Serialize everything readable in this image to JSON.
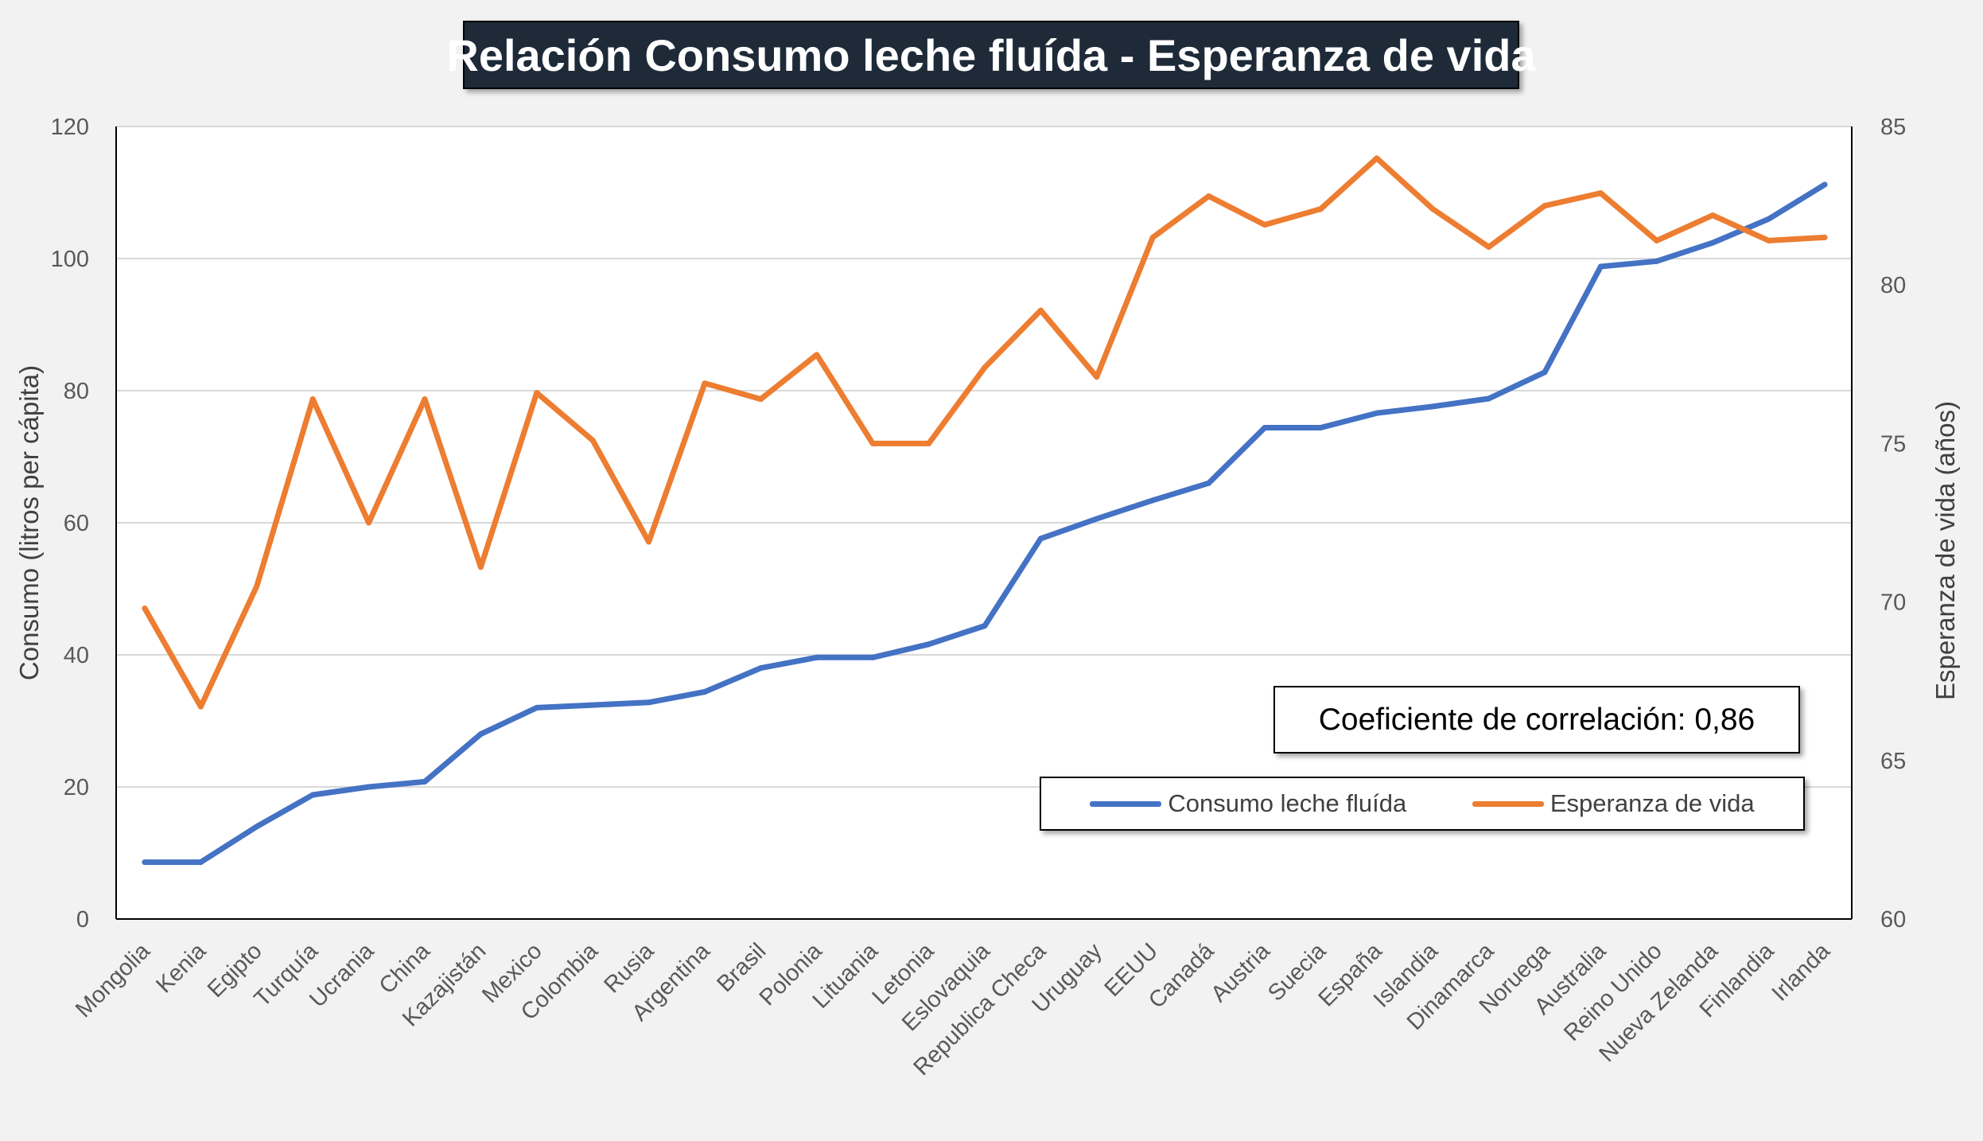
{
  "chart_data": {
    "type": "line",
    "title": "Relación Consumo leche fluída - Esperanza de vida",
    "annotation": "Coeficiente de correlación: 0,86",
    "categories": [
      "Mongolia",
      "Kenia",
      "Egipto",
      "Turquía",
      "Ucrania",
      "China",
      "Kazajistán",
      "Mexico",
      "Colombia",
      "Rusia",
      "Argentina",
      "Brasil",
      "Polonia",
      "Lituania",
      "Letonia",
      "Eslovaquia",
      "Republica Checa",
      "Uruguay",
      "EEUU",
      "Canadá",
      "Austria",
      "Suecia",
      "España",
      "Islandia",
      "Dinamarca",
      "Noruega",
      "Australia",
      "Reino Unido",
      "Nueva Zelanda",
      "Finlandia",
      "Irlanda"
    ],
    "y_left": {
      "label": "Consumo (litros per cápita)",
      "range": [
        0,
        120
      ],
      "ticks": [
        0,
        20,
        40,
        60,
        80,
        100,
        120
      ]
    },
    "y_right": {
      "label": "Esperanza de vida (años)",
      "range": [
        60,
        85
      ],
      "ticks": [
        60,
        65,
        70,
        75,
        80,
        85
      ]
    },
    "grid": true,
    "legend_position": "bottom-right",
    "series": [
      {
        "name": "Consumo leche fluída",
        "axis": "left",
        "color": "#4472c4",
        "values": [
          8.6,
          8.6,
          14.0,
          18.8,
          20.0,
          20.8,
          28.0,
          32.0,
          32.4,
          32.8,
          34.4,
          38.0,
          39.6,
          39.6,
          41.6,
          44.4,
          57.6,
          60.6,
          63.4,
          66.0,
          74.4,
          74.4,
          76.6,
          77.6,
          78.8,
          82.8,
          98.8,
          99.6,
          102.4,
          106.0,
          111.2
        ]
      },
      {
        "name": "Esperanza de vida",
        "axis": "right",
        "color": "#ed7d31",
        "values": [
          69.8,
          66.7,
          70.5,
          76.4,
          72.5,
          76.4,
          71.1,
          76.6,
          75.1,
          71.9,
          76.9,
          76.4,
          77.8,
          75.0,
          75.0,
          77.4,
          79.2,
          77.1,
          81.5,
          82.8,
          81.9,
          82.4,
          84.0,
          82.4,
          81.2,
          82.5,
          82.9,
          81.4,
          82.2,
          81.4,
          81.5
        ]
      }
    ]
  }
}
